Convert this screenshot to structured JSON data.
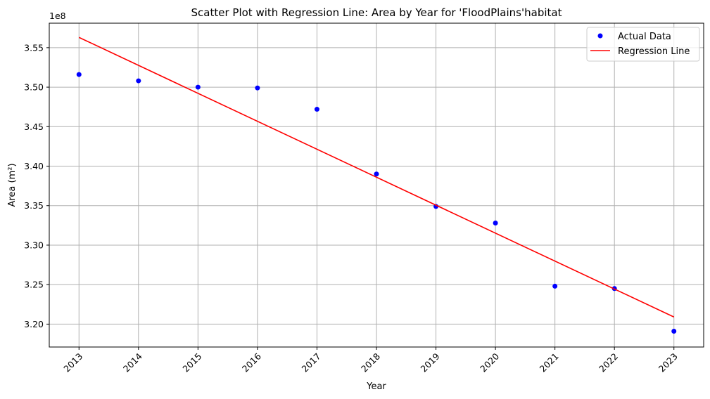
{
  "chart_data": {
    "type": "scatter",
    "title": "Scatter Plot with Regression Line: Area by Year for 'FloodPlains'habitat",
    "xlabel": "Year",
    "ylabel": "Area (m²)",
    "y_offset_label": "1e8",
    "y_scale": 100000000,
    "grid": true,
    "legend_position": "top-right",
    "x_ticks": [
      2013,
      2014,
      2015,
      2016,
      2017,
      2018,
      2019,
      2020,
      2021,
      2022,
      2023
    ],
    "x_tick_labels": [
      "2013",
      "2014",
      "2015",
      "2016",
      "2017",
      "2018",
      "2019",
      "2020",
      "2021",
      "2022",
      "2023"
    ],
    "y_ticks": [
      3.2,
      3.25,
      3.3,
      3.35,
      3.4,
      3.45,
      3.5,
      3.55
    ],
    "y_tick_labels": [
      "3.20",
      "3.25",
      "3.30",
      "3.35",
      "3.40",
      "3.45",
      "3.50",
      "3.55"
    ],
    "xlim": [
      2012.5,
      2023.5
    ],
    "ylim": [
      3.171,
      3.581
    ],
    "series": [
      {
        "name": "Actual Data",
        "kind": "scatter",
        "color": "#0000ff",
        "x": [
          2013,
          2014,
          2015,
          2016,
          2017,
          2018,
          2019,
          2020,
          2021,
          2022,
          2023
        ],
        "y": [
          3.516,
          3.508,
          3.5,
          3.499,
          3.472,
          3.39,
          3.349,
          3.328,
          3.248,
          3.245,
          3.191
        ]
      },
      {
        "name": "Regression Line",
        "kind": "line",
        "color": "#ff0000",
        "x": [
          2013,
          2023
        ],
        "y": [
          3.563,
          3.209
        ]
      }
    ]
  }
}
